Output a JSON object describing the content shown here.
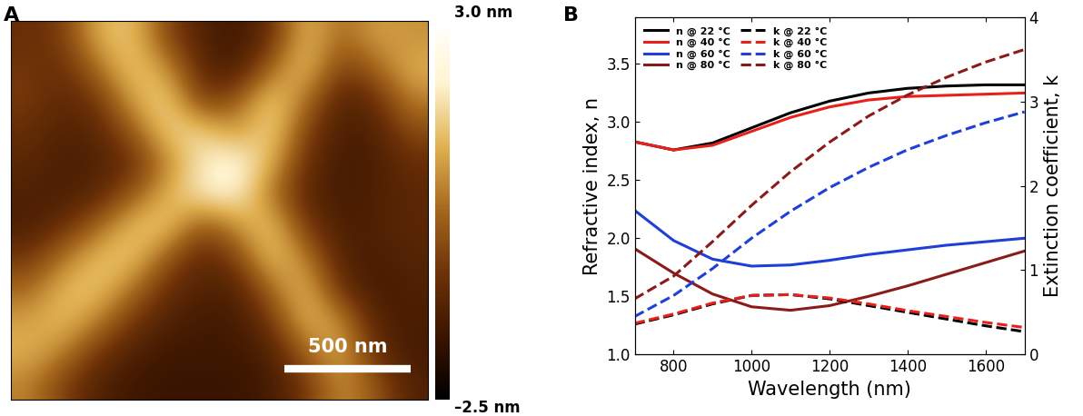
{
  "chart_data": [
    {
      "type": "heatmap",
      "panel": "A",
      "tick_labels": false,
      "image_size": 1640,
      "cells": [
        [
          -0.8,
          -0.5,
          1.2,
          1.5,
          -0.3,
          -1.2,
          -1.5,
          -0.8,
          1.4,
          0.2,
          1.0,
          0.8
        ],
        [
          -0.6,
          -0.8,
          0.3,
          1.6,
          0.8,
          -1.0,
          -1.4,
          0.3,
          1.5,
          -0.5,
          0.2,
          1.2
        ],
        [
          -0.5,
          -1.0,
          -0.6,
          1.0,
          1.8,
          -0.6,
          0.0,
          1.7,
          0.4,
          -1.2,
          -0.8,
          0.6
        ],
        [
          -0.8,
          -1.2,
          -1.0,
          0.0,
          1.6,
          1.7,
          0.8,
          1.8,
          -0.4,
          -1.3,
          -1.2,
          -0.2
        ],
        [
          -1.0,
          -1.3,
          -1.2,
          -0.8,
          0.6,
          2.0,
          2.4,
          1.2,
          -0.8,
          -1.4,
          -1.3,
          -0.8
        ],
        [
          -1.2,
          -1.3,
          -1.0,
          0.0,
          1.2,
          2.0,
          2.2,
          0.4,
          -1.0,
          -1.4,
          -1.2,
          -1.0
        ],
        [
          -1.3,
          -0.8,
          0.2,
          1.4,
          1.6,
          -0.2,
          0.8,
          1.6,
          -0.6,
          -1.3,
          -1.2,
          -1.0
        ],
        [
          -0.6,
          0.4,
          1.4,
          1.5,
          0.0,
          -1.0,
          -0.4,
          1.5,
          0.6,
          -1.2,
          -1.3,
          -1.1
        ],
        [
          0.2,
          1.3,
          1.5,
          0.4,
          -0.8,
          -1.2,
          -1.2,
          0.3,
          1.4,
          -0.8,
          -1.4,
          -1.2
        ],
        [
          1.0,
          1.4,
          0.6,
          -0.6,
          -1.2,
          -1.4,
          -1.4,
          -0.6,
          1.3,
          0.8,
          -1.2,
          -1.3
        ],
        [
          1.2,
          0.6,
          -0.6,
          -1.2,
          -1.5,
          -1.5,
          -1.5,
          -1.2,
          0.2,
          1.2,
          -0.8,
          -1.4
        ],
        [
          0.6,
          -0.4,
          -1.2,
          -1.5,
          -1.6,
          -1.6,
          -1.6,
          -1.4,
          -0.6,
          0.8,
          0.0,
          -1.2
        ]
      ],
      "colorbar": {
        "range": [
          -2.5,
          3.0
        ],
        "ticks": [
          {
            "value": 3.0,
            "label": "3.0 nm"
          },
          {
            "value": -2.5,
            "label": "–2.5 nm"
          }
        ]
      },
      "scale_bar": {
        "length": 500,
        "label": "500 nm"
      }
    },
    {
      "type": "line",
      "panel": "B",
      "x_label": "Wavelength (nm)",
      "y_label": "Refractive index, n",
      "y2_label": "Extinction coefficient, k",
      "x": [
        700,
        800,
        900,
        1000,
        1100,
        1200,
        1300,
        1400,
        1500,
        1600,
        1700
      ],
      "xlim": [
        700,
        1700
      ],
      "xticks": [
        800,
        1000,
        1200,
        1400,
        1600
      ],
      "ylim": [
        1.0,
        3.9
      ],
      "yticks": [
        1.0,
        1.5,
        2.0,
        2.5,
        3.0,
        3.5
      ],
      "y2lim": [
        0,
        4
      ],
      "y2ticks": [
        0,
        1,
        2,
        3,
        4
      ],
      "legend": "upper left",
      "series": [
        {
          "name": "n @ 22 °C",
          "color": "#000000",
          "line_style": "solid",
          "values": [
            2.83,
            2.76,
            2.82,
            2.95,
            3.08,
            3.18,
            3.25,
            3.29,
            3.31,
            3.32,
            3.32
          ]
        },
        {
          "name": "n @ 40 °C",
          "color": "#e8201c",
          "line_style": "solid",
          "values": [
            2.83,
            2.76,
            2.8,
            2.92,
            3.04,
            3.13,
            3.19,
            3.22,
            3.23,
            3.24,
            3.25
          ]
        },
        {
          "name": "n @ 60 °C",
          "color": "#1f3fd6",
          "line_style": "solid",
          "values": [
            2.24,
            1.98,
            1.82,
            1.76,
            1.77,
            1.81,
            1.86,
            1.9,
            1.94,
            1.97,
            2.0
          ]
        },
        {
          "name": "n @ 80 °C",
          "color": "#8b1a1a",
          "line_style": "solid",
          "values": [
            1.91,
            1.7,
            1.52,
            1.41,
            1.38,
            1.42,
            1.5,
            1.59,
            1.69,
            1.79,
            1.89
          ]
        },
        {
          "name": "k @ 22 °C",
          "color": "#000000",
          "line_style": "dashed",
          "axis": "y2",
          "values": [
            0.36,
            0.47,
            0.6,
            0.7,
            0.71,
            0.66,
            0.58,
            0.5,
            0.42,
            0.34,
            0.27
          ]
        },
        {
          "name": "k @ 40 °C",
          "color": "#e8201c",
          "line_style": "dashed",
          "axis": "y2",
          "values": [
            0.37,
            0.48,
            0.61,
            0.7,
            0.71,
            0.67,
            0.6,
            0.52,
            0.45,
            0.38,
            0.32
          ]
        },
        {
          "name": "k @ 60 °C",
          "color": "#1f3fd6",
          "line_style": "dashed",
          "axis": "y2",
          "values": [
            0.45,
            0.7,
            1.02,
            1.38,
            1.7,
            1.98,
            2.22,
            2.43,
            2.6,
            2.75,
            2.88
          ]
        },
        {
          "name": "k @ 80 °C",
          "color": "#8b1a1a",
          "line_style": "dashed",
          "axis": "y2",
          "values": [
            0.66,
            0.93,
            1.34,
            1.77,
            2.17,
            2.52,
            2.83,
            3.08,
            3.29,
            3.47,
            3.62
          ]
        }
      ]
    }
  ]
}
